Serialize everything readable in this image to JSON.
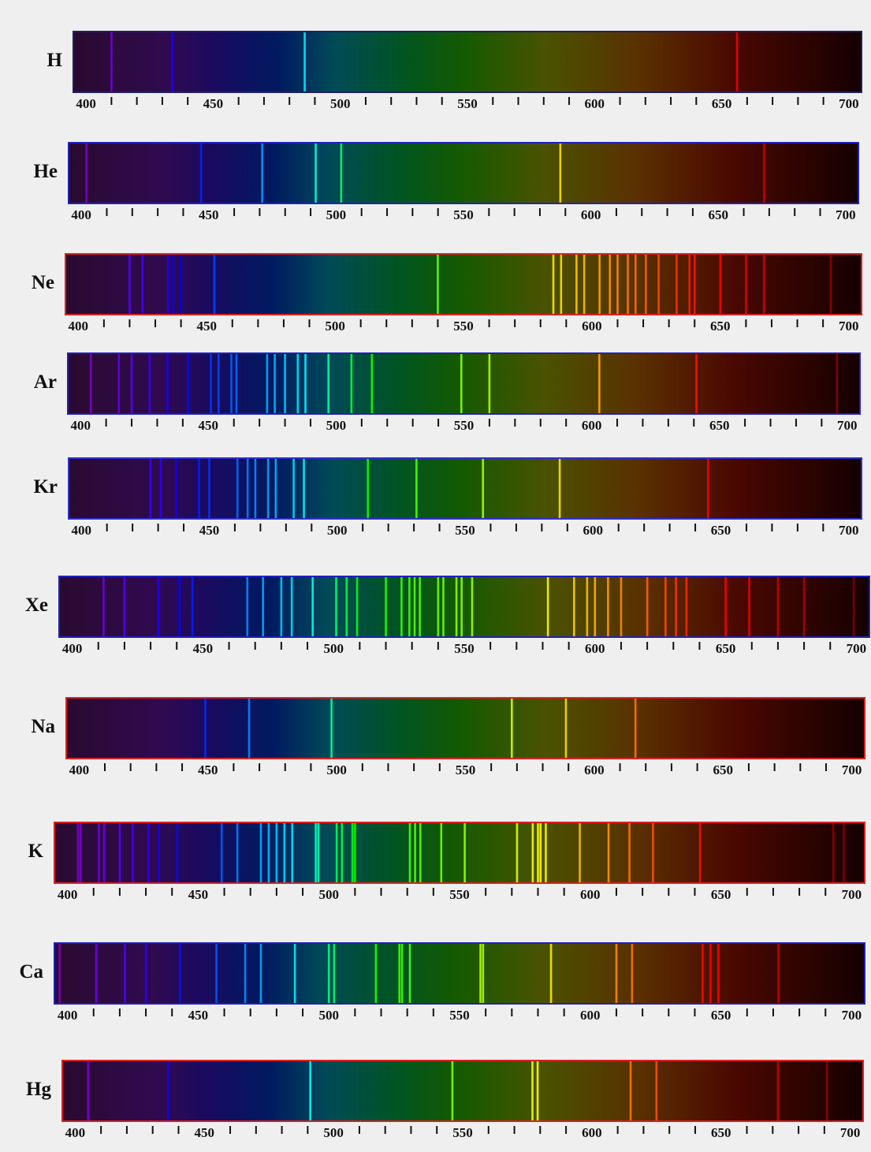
{
  "chart_data": [
    {
      "type": "spectrum",
      "title": "H",
      "border_color": "#20206a",
      "xlim": [
        395,
        705
      ],
      "xticks": [
        400,
        450,
        500,
        550,
        600,
        650,
        700
      ],
      "minor_xticks": [
        410,
        420,
        430,
        440,
        460,
        470,
        480,
        490,
        510,
        520,
        530,
        540,
        560,
        570,
        580,
        590,
        610,
        620,
        630,
        640,
        660,
        670,
        680,
        690
      ],
      "lines": [
        410,
        434,
        486,
        656
      ]
    },
    {
      "type": "spectrum",
      "title": "He",
      "border_color": "#2020c0",
      "xlim": [
        395,
        705
      ],
      "xticks": [
        400,
        450,
        500,
        550,
        600,
        650,
        700
      ],
      "minor_xticks": [
        410,
        420,
        430,
        440,
        460,
        470,
        480,
        490,
        510,
        520,
        530,
        540,
        560,
        570,
        580,
        590,
        610,
        620,
        630,
        640,
        660,
        670,
        680,
        690
      ],
      "lines": [
        402,
        447,
        471,
        492,
        502,
        588,
        668
      ]
    },
    {
      "type": "spectrum",
      "title": "Ne",
      "border_color": "#e02020",
      "xlim": [
        395,
        705
      ],
      "xticks": [
        400,
        450,
        500,
        550,
        600,
        650,
        700
      ],
      "minor_xticks": [
        410,
        420,
        430,
        440,
        460,
        470,
        480,
        490,
        510,
        520,
        530,
        540,
        560,
        570,
        580,
        590,
        610,
        620,
        630,
        640,
        660,
        670,
        680,
        690
      ],
      "lines": [
        420,
        425,
        435,
        437,
        440,
        453,
        540,
        585,
        588,
        594,
        597,
        603,
        607,
        610,
        614,
        617,
        621,
        626,
        633,
        638,
        640,
        650,
        660,
        667,
        693
      ]
    },
    {
      "type": "spectrum",
      "title": "Ar",
      "border_color": "#2020c0",
      "xlim": [
        395,
        705
      ],
      "xticks": [
        400,
        450,
        500,
        550,
        600,
        650,
        700
      ],
      "minor_xticks": [
        410,
        420,
        430,
        440,
        460,
        470,
        480,
        490,
        510,
        520,
        530,
        540,
        560,
        570,
        580,
        590,
        610,
        620,
        630,
        640,
        660,
        670,
        680,
        690
      ],
      "lines": [
        404,
        415,
        420,
        427,
        434,
        442,
        451,
        454,
        459,
        461,
        473,
        476,
        480,
        485,
        488,
        497,
        506,
        514,
        549,
        560,
        603,
        641,
        696
      ]
    },
    {
      "type": "spectrum",
      "title": "Kr",
      "border_color": "#3030d0",
      "xlim": [
        395,
        705
      ],
      "xticks": [
        400,
        450,
        500,
        550,
        600,
        650,
        700
      ],
      "minor_xticks": [
        410,
        420,
        430,
        440,
        460,
        470,
        480,
        490,
        510,
        520,
        530,
        540,
        560,
        570,
        580,
        590,
        610,
        620,
        630,
        640,
        660,
        670,
        680,
        690
      ],
      "lines": [
        427,
        431,
        437,
        446,
        450,
        461,
        465,
        468,
        473,
        476,
        483,
        487,
        512,
        531,
        557,
        587,
        645
      ]
    },
    {
      "type": "spectrum",
      "title": "Xe",
      "border_color": "#2020c0",
      "xlim": [
        395,
        705
      ],
      "xticks": [
        400,
        450,
        500,
        550,
        600,
        650,
        700
      ],
      "minor_xticks": [
        410,
        420,
        430,
        440,
        460,
        470,
        480,
        490,
        510,
        520,
        530,
        540,
        560,
        570,
        580,
        590,
        610,
        620,
        630,
        640,
        660,
        670,
        680,
        690
      ],
      "lines": [
        412,
        420,
        433,
        441,
        446,
        467,
        473,
        480,
        484,
        492,
        501,
        505,
        509,
        520,
        526,
        529,
        531,
        533,
        540,
        542,
        547,
        549,
        553,
        582,
        592,
        597,
        600,
        605,
        610,
        620,
        627,
        631,
        635,
        650,
        659,
        670,
        680,
        699
      ]
    },
    {
      "type": "spectrum",
      "title": "Na",
      "border_color": "#e02020",
      "xlim": [
        395,
        705
      ],
      "xticks": [
        400,
        450,
        500,
        550,
        600,
        650,
        700
      ],
      "minor_xticks": [
        410,
        420,
        430,
        440,
        460,
        470,
        480,
        490,
        510,
        520,
        530,
        540,
        560,
        570,
        580,
        590,
        610,
        620,
        630,
        640,
        660,
        670,
        680,
        690
      ],
      "lines": [
        449,
        466,
        498,
        568,
        589,
        616
      ]
    },
    {
      "type": "spectrum",
      "title": "K",
      "border_color": "#e02020",
      "xlim": [
        395,
        705
      ],
      "xticks": [
        400,
        450,
        500,
        550,
        600,
        650,
        700
      ],
      "minor_xticks": [
        410,
        420,
        430,
        440,
        460,
        470,
        480,
        490,
        510,
        520,
        530,
        540,
        560,
        570,
        580,
        590,
        610,
        620,
        630,
        640,
        660,
        670,
        680,
        690
      ],
      "lines": [
        404,
        405,
        412,
        414,
        420,
        425,
        431,
        435,
        442,
        459,
        465,
        474,
        477,
        480,
        483,
        486,
        495,
        496,
        503,
        505,
        509,
        510,
        531,
        533,
        535,
        543,
        552,
        572,
        578,
        580,
        581,
        583,
        596,
        607,
        615,
        624,
        642,
        693,
        697
      ]
    },
    {
      "type": "spectrum",
      "title": "Ca",
      "border_color": "#2020c0",
      "xlim": [
        395,
        705
      ],
      "xticks": [
        400,
        450,
        500,
        550,
        600,
        650,
        700
      ],
      "minor_xticks": [
        410,
        420,
        430,
        440,
        460,
        470,
        480,
        490,
        510,
        520,
        530,
        540,
        560,
        570,
        580,
        590,
        610,
        620,
        630,
        640,
        660,
        670,
        680,
        690
      ],
      "lines": [
        397,
        411,
        422,
        430,
        443,
        457,
        468,
        474,
        487,
        500,
        502,
        518,
        527,
        528,
        531,
        558,
        559,
        585,
        610,
        616,
        643,
        646,
        649,
        672
      ]
    },
    {
      "type": "spectrum",
      "title": "Hg",
      "border_color": "#e02020",
      "xlim": [
        395,
        705
      ],
      "xticks": [
        400,
        450,
        500,
        550,
        600,
        650,
        700
      ],
      "minor_xticks": [
        410,
        420,
        430,
        440,
        460,
        470,
        480,
        490,
        510,
        520,
        530,
        540,
        560,
        570,
        580,
        590,
        610,
        620,
        630,
        640,
        660,
        670,
        680,
        690
      ],
      "lines": [
        405,
        436,
        491,
        546,
        577,
        579,
        615,
        625,
        672,
        691
      ]
    }
  ]
}
